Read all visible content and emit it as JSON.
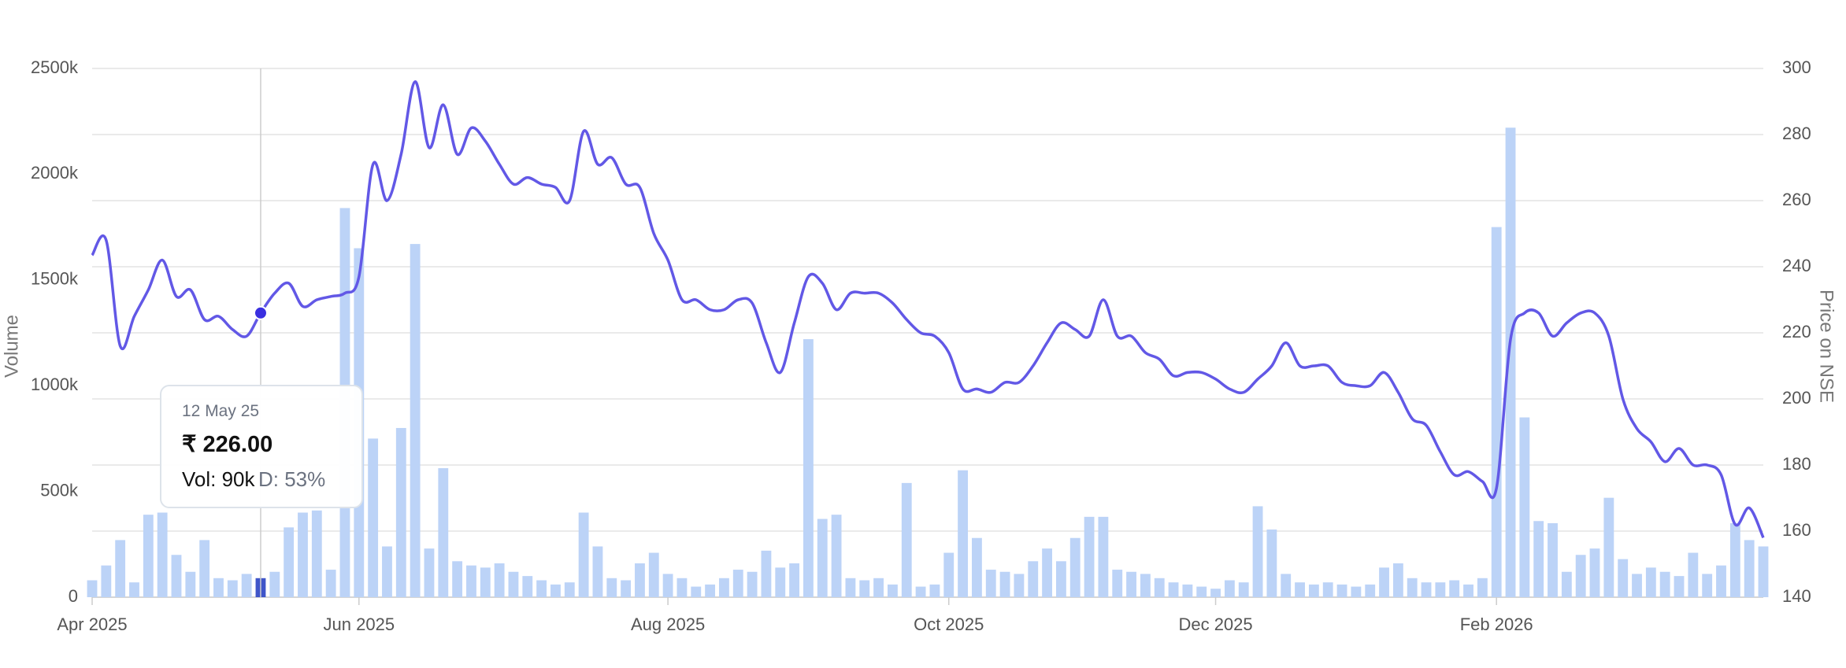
{
  "chart_data": {
    "type": "bar-line",
    "y_label": "Volume",
    "y2_label": "Price on NSE",
    "categories": [
      "Apr 2025",
      null,
      null,
      null,
      null,
      null,
      null,
      null,
      null,
      null,
      null,
      null,
      null,
      null,
      null,
      null,
      null,
      null,
      null,
      "Jun 2025",
      null,
      null,
      null,
      null,
      null,
      null,
      null,
      null,
      null,
      null,
      null,
      null,
      null,
      null,
      null,
      null,
      null,
      null,
      null,
      null,
      null,
      "Aug 2025",
      null,
      null,
      null,
      null,
      null,
      null,
      null,
      null,
      null,
      null,
      null,
      null,
      null,
      null,
      null,
      null,
      null,
      null,
      null,
      "Oct 2025",
      null,
      null,
      null,
      null,
      null,
      null,
      null,
      null,
      null,
      null,
      null,
      null,
      null,
      null,
      null,
      null,
      null,
      null,
      "Dec 2025",
      null,
      null,
      null,
      null,
      null,
      null,
      null,
      null,
      null,
      null,
      null,
      null,
      null,
      null,
      null,
      null,
      null,
      null,
      null,
      "Feb 2026",
      null,
      null,
      null,
      null,
      null,
      null,
      null,
      null,
      null,
      null,
      null,
      null,
      null,
      null,
      null,
      null,
      null,
      null,
      null
    ],
    "series": [
      {
        "type": "bar",
        "color": "#bcd3f7",
        "axis": "y",
        "values": [
          80,
          150,
          270,
          70,
          390,
          400,
          200,
          120,
          270,
          90,
          80,
          110,
          90,
          120,
          330,
          400,
          410,
          130,
          1840,
          1650,
          750,
          240,
          800,
          1670,
          230,
          610,
          170,
          150,
          140,
          160,
          120,
          100,
          80,
          60,
          70,
          400,
          240,
          90,
          80,
          160,
          210,
          110,
          90,
          50,
          60,
          90,
          130,
          120,
          220,
          140,
          160,
          1220,
          370,
          390,
          90,
          80,
          90,
          60,
          540,
          50,
          60,
          210,
          600,
          280,
          130,
          120,
          110,
          170,
          230,
          170,
          280,
          380,
          380,
          130,
          120,
          110,
          90,
          70,
          60,
          50,
          40,
          80,
          70,
          430,
          320,
          110,
          70,
          60,
          70,
          60,
          50,
          60,
          140,
          160,
          90,
          70,
          70,
          80,
          60,
          90,
          1750,
          2220,
          850,
          360,
          350,
          120,
          200,
          230,
          470,
          180,
          110,
          140,
          120,
          100,
          210,
          110,
          150,
          350,
          270,
          240
        ]
      },
      {
        "type": "line",
        "color": "#6258e6",
        "axis": "y2",
        "values": [
          243.5,
          248,
          216,
          225,
          233,
          242,
          231,
          233,
          224,
          225,
          221,
          219,
          226,
          232,
          235,
          228,
          230,
          231,
          232,
          237,
          271,
          260,
          274,
          296,
          276,
          289,
          274,
          282,
          278,
          271,
          265,
          267,
          265,
          264,
          260,
          281,
          271,
          273,
          265,
          264,
          250,
          242,
          230,
          230,
          227,
          227,
          230,
          229,
          217,
          208,
          223,
          237,
          235,
          227,
          232,
          232,
          232,
          229,
          224,
          220,
          219,
          214,
          203,
          203,
          202,
          205,
          205,
          210,
          217,
          223,
          221,
          219,
          230,
          219,
          219,
          214,
          212,
          207,
          208,
          208,
          206,
          203,
          202,
          206,
          210,
          217,
          210,
          210,
          210,
          205,
          204,
          204,
          208,
          202,
          194,
          192,
          184,
          177,
          178,
          175,
          173,
          218,
          226,
          226,
          219,
          223,
          226,
          226,
          219,
          200,
          191,
          187,
          181,
          185,
          180,
          180,
          177,
          162,
          167,
          158
        ]
      }
    ],
    "ylim": [
      0,
      2500
    ],
    "yticks": [
      0,
      {
        "value": 500,
        "label": "500k"
      },
      {
        "value": 1000,
        "label": "1000k"
      },
      {
        "value": 1500,
        "label": "1500k"
      },
      {
        "value": 2000,
        "label": "2000k"
      },
      {
        "value": 2500,
        "label": "2500k"
      }
    ],
    "y2lim": [
      140,
      300
    ],
    "y2ticks": [
      140,
      160,
      180,
      200,
      220,
      240,
      260,
      280,
      300
    ],
    "grid": true,
    "highlight_index": 12,
    "tooltip": {
      "date": "12 May 25",
      "price": "₹ 226.00",
      "volume": "Vol: 90k",
      "delivery": "D: 53%"
    }
  }
}
